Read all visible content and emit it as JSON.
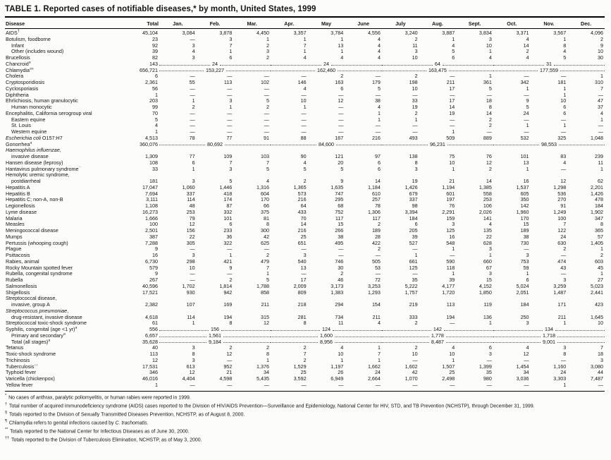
{
  "title": "TABLE 1. Reported cases of notifiable diseases,* by month, United States, 1999",
  "colors": {
    "page_bg": "#fcfcfa",
    "text": "#141414",
    "rule": "#000000"
  },
  "table": {
    "columns": [
      "Disease",
      "Total",
      "Jan.",
      "Feb.",
      "Mar.",
      "Apr.",
      "May",
      "June",
      "July",
      "Aug.",
      "Sept.",
      "Oct.",
      "Nov.",
      "Dec."
    ],
    "rows": [
      {
        "name": "AIDS",
        "sup": "†",
        "total": "45,104",
        "months": [
          "3,084",
          "3,878",
          "4,450",
          "3,357",
          "3,784",
          "4,556",
          "3,240",
          "3,887",
          "3,834",
          "3,371",
          "3,567",
          "4,096"
        ]
      },
      {
        "name": "Botulism, foodborne",
        "total": "23",
        "months": [
          "—",
          "3",
          "1",
          "1",
          "1",
          "4",
          "2",
          "1",
          "3",
          "4",
          "1",
          "2"
        ]
      },
      {
        "name": "Infant",
        "indent": 1,
        "total": "92",
        "months": [
          "3",
          "7",
          "2",
          "7",
          "13",
          "4",
          "11",
          "4",
          "10",
          "14",
          "8",
          "9"
        ]
      },
      {
        "name": "Other (includes wound)",
        "indent": 1,
        "total": "39",
        "months": [
          "4",
          "1",
          "3",
          "1",
          "1",
          "4",
          "3",
          "5",
          "1",
          "2",
          "4",
          "10"
        ]
      },
      {
        "name": "Brucellosis",
        "total": "82",
        "months": [
          "3",
          "6",
          "2",
          "4",
          "4",
          "4",
          "10",
          "6",
          "4",
          "4",
          "5",
          "30"
        ]
      },
      {
        "name": "Chancroid",
        "sup": "§",
        "total": "143",
        "quarters": [
          "24",
          "24",
          "64",
          "31"
        ]
      },
      {
        "name": "Chlamydia",
        "sup": "§¶",
        "total": "656,721",
        "quarters": [
          "153,227",
          "162,460",
          "163,475",
          "177,559"
        ]
      },
      {
        "name": "Cholera",
        "total": "6",
        "months": [
          "—",
          "—",
          "—",
          "—",
          "2",
          "—",
          "2",
          "—",
          "1",
          "—",
          "—",
          "1"
        ]
      },
      {
        "name": "Cryptosporidiosis",
        "total": "2,361",
        "months": [
          "55",
          "113",
          "102",
          "146",
          "163",
          "179",
          "198",
          "211",
          "361",
          "342",
          "181",
          "310"
        ]
      },
      {
        "name": "Cyclosporiasis",
        "total": "56",
        "months": [
          "—",
          "—",
          "—",
          "4",
          "6",
          "5",
          "10",
          "17",
          "5",
          "1",
          "1",
          "7"
        ]
      },
      {
        "name": "Diphtheria",
        "total": "1",
        "months": [
          "—",
          "—",
          "—",
          "—",
          "—",
          "—",
          "—",
          "—",
          "—",
          "—",
          "1",
          "—"
        ]
      },
      {
        "name": "Ehrlichiosis, human granulocytic",
        "total": "203",
        "months": [
          "1",
          "3",
          "5",
          "10",
          "12",
          "38",
          "33",
          "17",
          "18",
          "9",
          "10",
          "47"
        ]
      },
      {
        "name": "Human monocytic",
        "indent": 1,
        "total": "99",
        "months": [
          "2",
          "1",
          "2",
          "1",
          "—",
          "4",
          "19",
          "14",
          "8",
          "5",
          "6",
          "37"
        ]
      },
      {
        "name": "Encephalitis, California serogroup viral",
        "total": "70",
        "months": [
          "—",
          "—",
          "—",
          "—",
          "—",
          "1",
          "2",
          "19",
          "14",
          "24",
          "6",
          "4"
        ]
      },
      {
        "name": "Eastern equine",
        "indent": 1,
        "total": "5",
        "months": [
          "—",
          "—",
          "—",
          "—",
          "—",
          "1",
          "1",
          "—",
          "2",
          "—",
          "—",
          "1"
        ]
      },
      {
        "name": "St. Louis",
        "indent": 1,
        "total": "4",
        "months": [
          "—",
          "—",
          "—",
          "—",
          "—",
          "—",
          "—",
          "—",
          "2",
          "1",
          "1",
          "—"
        ]
      },
      {
        "name": "Western equine",
        "indent": 1,
        "total": "1",
        "months": [
          "—",
          "—",
          "—",
          "—",
          "—",
          "—",
          "—",
          "1",
          "—",
          "—",
          "—",
          "—"
        ]
      },
      {
        "name": "_Escherichia coli_ O157:H7",
        "total": "4,513",
        "months": [
          "78",
          "77",
          "91",
          "88",
          "167",
          "216",
          "493",
          "509",
          "889",
          "532",
          "325",
          "1,048"
        ]
      },
      {
        "name": "Gonorrhea",
        "sup": "§",
        "total": "360,076",
        "quarters": [
          "80,692",
          "84,600",
          "96,231",
          "98,553"
        ]
      },
      {
        "name": "_Haemophilus influenzae_,",
        "label_only": true
      },
      {
        "name": "invasive disease",
        "indent": 1,
        "total": "1,309",
        "months": [
          "77",
          "109",
          "103",
          "90",
          "121",
          "97",
          "138",
          "75",
          "76",
          "101",
          "83",
          "239"
        ]
      },
      {
        "name": "Hansen disease (leprosy)",
        "total": "108",
        "months": [
          "6",
          "7",
          "7",
          "4",
          "20",
          "6",
          "8",
          "10",
          "12",
          "13",
          "4",
          "11"
        ]
      },
      {
        "name": "Hantavirus pulmonary syndrome",
        "sup": "**",
        "total": "33",
        "months": [
          "1",
          "3",
          "5",
          "5",
          "5",
          "6",
          "3",
          "1",
          "2",
          "1",
          "—",
          "1"
        ]
      },
      {
        "name": "Hemolytic uremic syndrome,",
        "label_only": true
      },
      {
        "name": "postdiarrheal",
        "indent": 1,
        "total": "181",
        "months": [
          "3",
          "5",
          "4",
          "2",
          "9",
          "14",
          "19",
          "21",
          "14",
          "16",
          "12",
          "62"
        ]
      },
      {
        "name": "Hepatitis A",
        "total": "17,047",
        "months": [
          "1,060",
          "1,446",
          "1,316",
          "1,365",
          "1,635",
          "1,184",
          "1,426",
          "1,194",
          "1,385",
          "1,537",
          "1,298",
          "2,201"
        ]
      },
      {
        "name": "Hepatitis B",
        "total": "7,694",
        "months": [
          "337",
          "418",
          "604",
          "573",
          "747",
          "610",
          "679",
          "601",
          "558",
          "605",
          "536",
          "1,426"
        ]
      },
      {
        "name": "Hepatitis C; non-A, non-B",
        "total": "3,111",
        "months": [
          "114",
          "174",
          "170",
          "216",
          "295",
          "257",
          "337",
          "197",
          "253",
          "350",
          "270",
          "478"
        ]
      },
      {
        "name": "Legionellosis",
        "total": "1,108",
        "months": [
          "48",
          "87",
          "66",
          "64",
          "68",
          "78",
          "98",
          "76",
          "106",
          "142",
          "91",
          "184"
        ]
      },
      {
        "name": "Lyme disease",
        "total": "16,273",
        "months": [
          "253",
          "332",
          "375",
          "433",
          "752",
          "1,306",
          "3,394",
          "2,291",
          "2,026",
          "1,960",
          "1,249",
          "1,902"
        ]
      },
      {
        "name": "Malaria",
        "total": "1,666",
        "months": [
          "79",
          "101",
          "81",
          "70",
          "117",
          "117",
          "184",
          "159",
          "141",
          "170",
          "100",
          "347"
        ]
      },
      {
        "name": "Measles",
        "total": "100",
        "months": [
          "12",
          "6",
          "8",
          "14",
          "15",
          "2",
          "6",
          "3",
          "4",
          "15",
          "7",
          "8"
        ]
      },
      {
        "name": "Meningococcal disease",
        "total": "2,501",
        "months": [
          "156",
          "233",
          "300",
          "216",
          "266",
          "189",
          "205",
          "125",
          "135",
          "189",
          "122",
          "365"
        ]
      },
      {
        "name": "Mumps",
        "total": "387",
        "months": [
          "22",
          "36",
          "42",
          "25",
          "38",
          "28",
          "39",
          "16",
          "22",
          "38",
          "24",
          "57"
        ]
      },
      {
        "name": "Pertussis (whooping cough)",
        "total": "7,288",
        "months": [
          "305",
          "322",
          "625",
          "651",
          "495",
          "422",
          "527",
          "548",
          "628",
          "730",
          "630",
          "1,405"
        ]
      },
      {
        "name": "Plague",
        "total": "9",
        "months": [
          "—",
          "—",
          "—",
          "—",
          "—",
          "2",
          "—",
          "1",
          "3",
          "—",
          "2",
          "1"
        ]
      },
      {
        "name": "Psittacosis",
        "total": "16",
        "months": [
          "3",
          "1",
          "2",
          "3",
          "—",
          "—",
          "1",
          "—",
          "1",
          "3",
          "—",
          "2"
        ]
      },
      {
        "name": "Rabies, animal",
        "total": "6,730",
        "months": [
          "298",
          "421",
          "479",
          "540",
          "746",
          "505",
          "661",
          "590",
          "660",
          "753",
          "474",
          "603"
        ]
      },
      {
        "name": "Rocky Mountain spotted fever",
        "total": "579",
        "months": [
          "10",
          "9",
          "7",
          "13",
          "30",
          "53",
          "125",
          "118",
          "67",
          "59",
          "43",
          "45"
        ]
      },
      {
        "name": "Rubella, congenital syndrome",
        "total": "9",
        "months": [
          "—",
          "—",
          "1",
          "—",
          "2",
          "—",
          "—",
          "1",
          "3",
          "1",
          "—",
          "1"
        ]
      },
      {
        "name": "Rubella",
        "total": "267",
        "months": [
          "—",
          "2",
          "5",
          "17",
          "46",
          "72",
          "35",
          "39",
          "15",
          "6",
          "3",
          "27"
        ]
      },
      {
        "name": "Salmonellosis",
        "total": "40,596",
        "months": [
          "1,702",
          "1,814",
          "1,788",
          "2,009",
          "3,173",
          "3,253",
          "5,222",
          "4,177",
          "4,152",
          "5,024",
          "3,259",
          "5,023"
        ]
      },
      {
        "name": "Shigellosis",
        "total": "17,521",
        "months": [
          "930",
          "942",
          "858",
          "809",
          "1,383",
          "1,293",
          "1,757",
          "1,720",
          "1,850",
          "2,051",
          "1,487",
          "2,441"
        ]
      },
      {
        "name": "Streptococcal disease,",
        "label_only": true
      },
      {
        "name": "invasive, group A",
        "indent": 1,
        "total": "2,382",
        "months": [
          "107",
          "169",
          "211",
          "218",
          "294",
          "154",
          "219",
          "113",
          "119",
          "184",
          "171",
          "423"
        ]
      },
      {
        "name": "_Streptococcus pneumoniae_,",
        "label_only": true
      },
      {
        "name": "drug-resistant, invasive disease",
        "indent": 1,
        "total": "4,618",
        "months": [
          "114",
          "194",
          "315",
          "281",
          "734",
          "211",
          "333",
          "194",
          "136",
          "250",
          "211",
          "1,645"
        ]
      },
      {
        "name": "Streptococcal toxic-shock syndrome",
        "total": "61",
        "months": [
          "1",
          "8",
          "12",
          "8",
          "11",
          "4",
          "2",
          "—",
          "1",
          "3",
          "1",
          "10"
        ]
      },
      {
        "name": "Syphilis, congenital (age <1 yr)",
        "sup": "§",
        "total": "556",
        "quarters": [
          "156",
          "124",
          "142",
          "134"
        ]
      },
      {
        "name": "Primary and secondary",
        "sup": "§",
        "indent": 1,
        "total": "6,657",
        "quarters": [
          "1,561",
          "1,600",
          "1,778",
          "1,718"
        ]
      },
      {
        "name": "Total (all stages)",
        "sup": "§",
        "indent": 1,
        "total": "35,628",
        "quarters": [
          "9,184",
          "8,956",
          "8,487",
          "9,001"
        ]
      },
      {
        "name": "Tetanus",
        "total": "40",
        "months": [
          "3",
          "2",
          "2",
          "2",
          "4",
          "1",
          "2",
          "4",
          "6",
          "4",
          "3",
          "7"
        ]
      },
      {
        "name": "Toxic-shock syndrome",
        "total": "113",
        "months": [
          "8",
          "12",
          "8",
          "7",
          "10",
          "7",
          "10",
          "10",
          "3",
          "12",
          "8",
          "18"
        ]
      },
      {
        "name": "Trichinosis",
        "total": "12",
        "months": [
          "3",
          "—",
          "1",
          "2",
          "1",
          "1",
          "—",
          "1",
          "—",
          "—",
          "—",
          "3"
        ]
      },
      {
        "name": "Tuberculosis",
        "sup": "††",
        "total": "17,531",
        "months": [
          "613",
          "952",
          "1,376",
          "1,529",
          "1,197",
          "1,662",
          "1,602",
          "1,507",
          "1,399",
          "1,454",
          "1,160",
          "3,080"
        ]
      },
      {
        "name": "Typhoid fever",
        "total": "346",
        "months": [
          "12",
          "21",
          "34",
          "25",
          "26",
          "24",
          "42",
          "25",
          "35",
          "34",
          "24",
          "44"
        ]
      },
      {
        "name": "Varicella (chickenpox)",
        "total": "46,016",
        "months": [
          "4,404",
          "4,598",
          "5,435",
          "3,592",
          "6,949",
          "2,664",
          "1,070",
          "2,498",
          "980",
          "3,036",
          "3,303",
          "7,487"
        ]
      },
      {
        "name": "Yellow fever",
        "total": "1",
        "months": [
          "—",
          "—",
          "—",
          "—",
          "—",
          "—",
          "—",
          "—",
          "—",
          "—",
          "1",
          "—"
        ]
      }
    ]
  },
  "footnotes": [
    {
      "sym": "*",
      "text": "No cases of anthrax, paralytic poliomyelitis, or human rabies were reported in 1999."
    },
    {
      "sym": "†",
      "text": "Total number of acquired immunodeficiency syndrome (AIDS) cases reported to the Division of HIV/AIDS Prevention—Surveillance and Epidemiology, National Center for HIV, STD, and TB Prevention (NCHSTP), through December 31, 1999."
    },
    {
      "sym": "§",
      "text": "Totals reported to the Division of Sexually Transmitted Diseases Prevention, NCHSTP, as of August 8, 2000."
    },
    {
      "sym": "¶",
      "text": "Chlamydia refers to genital infections caused by _C. trachomatis_."
    },
    {
      "sym": "**",
      "text": "Totals reported to the National Center for Infectious Diseases as of June 30, 2000."
    },
    {
      "sym": "††",
      "text": "Totals reported to the Division of Tuberculosis Elimination, NCHSTP, as of May 3, 2000."
    }
  ]
}
